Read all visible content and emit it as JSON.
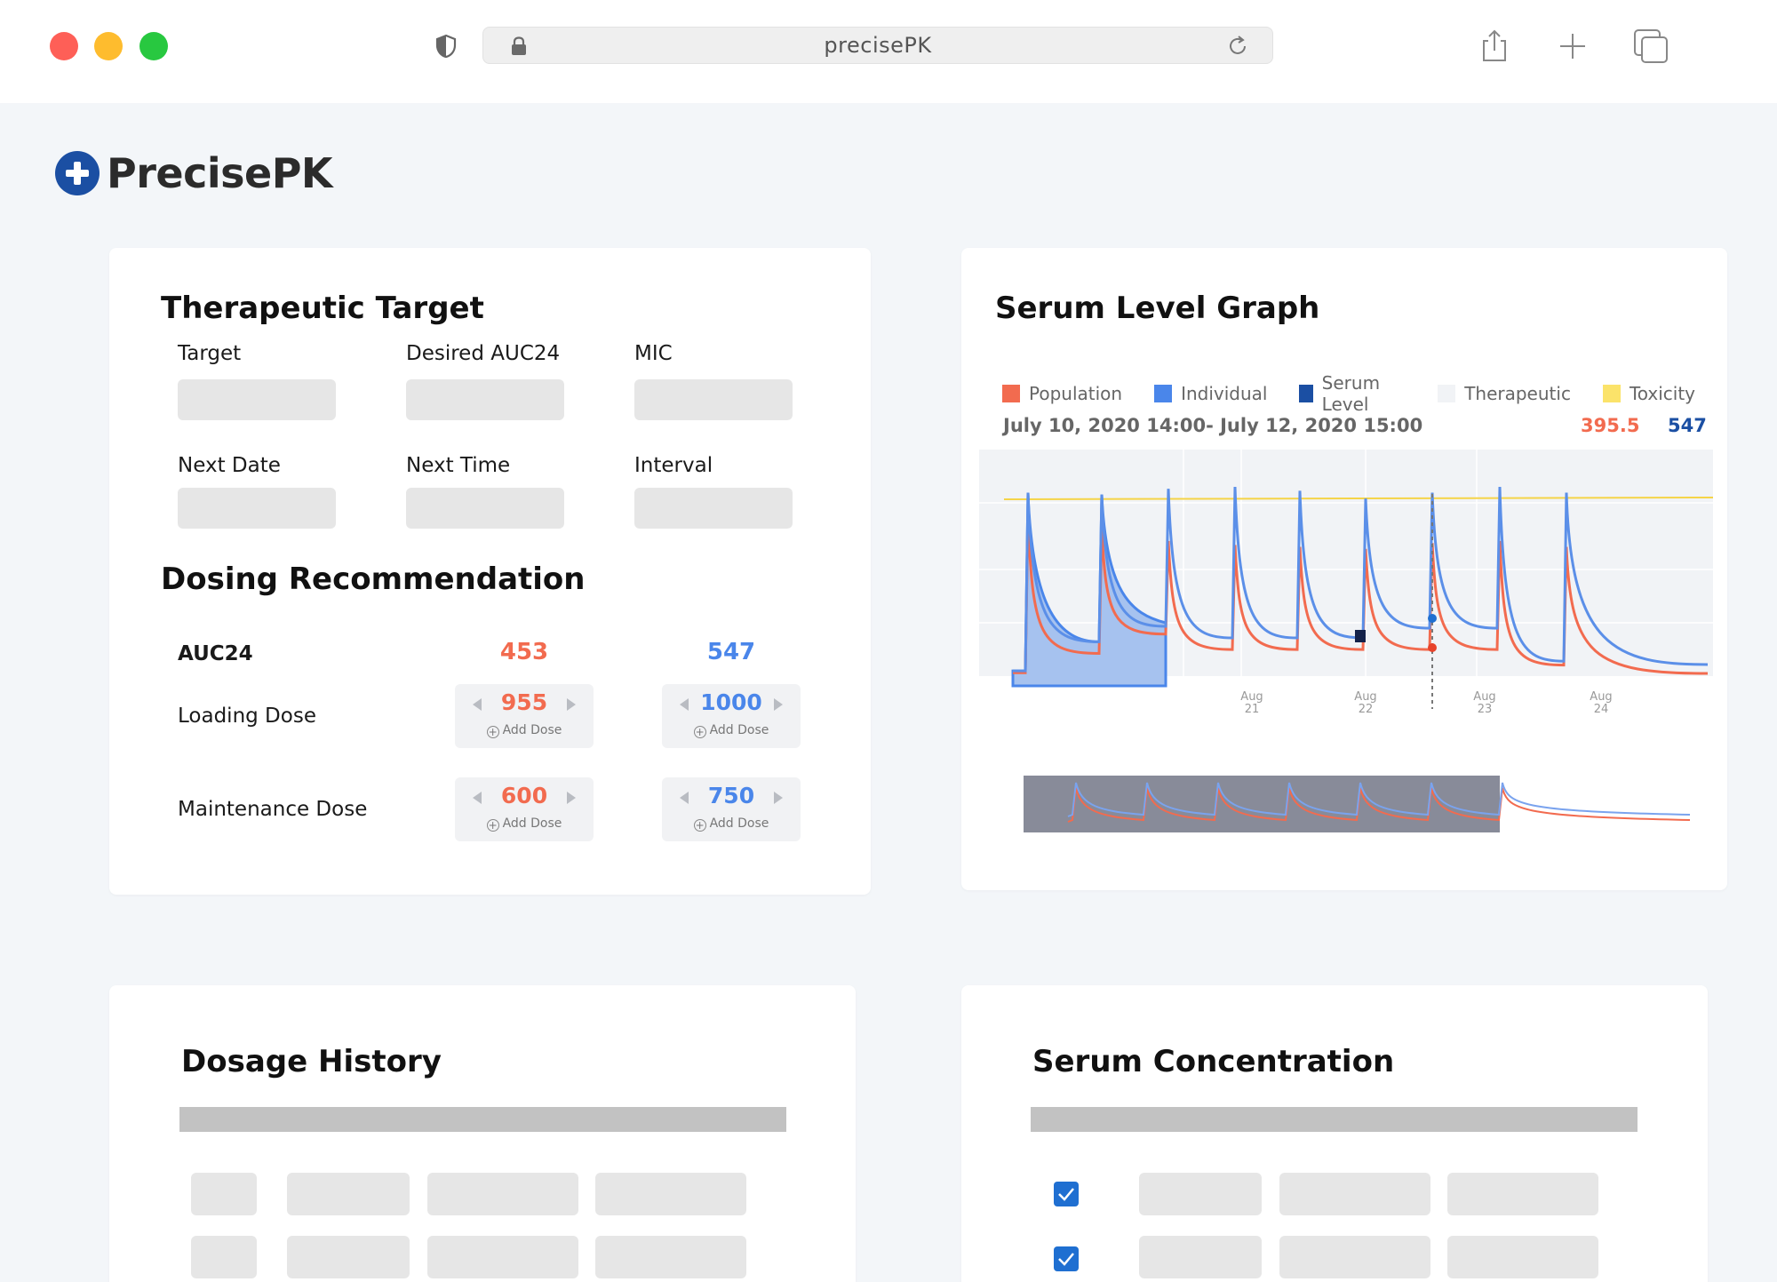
{
  "browser": {
    "url": "precisePK"
  },
  "app": {
    "name": "PrecisePK"
  },
  "therapeutic_target": {
    "title": "Therapeutic Target",
    "fields": [
      {
        "label": "Target",
        "value": ""
      },
      {
        "label": "Desired AUC24",
        "value": ""
      },
      {
        "label": "MIC",
        "value": ""
      },
      {
        "label": "Next Date",
        "value": ""
      },
      {
        "label": "Next Time",
        "value": ""
      },
      {
        "label": "Interval",
        "value": ""
      }
    ]
  },
  "dosing_recommendation": {
    "title": "Dosing Recommendation",
    "auc_label": "AUC24",
    "auc_population": "453",
    "auc_individual": "547",
    "loading_label": "Loading Dose",
    "loading_population": "955",
    "loading_individual": "1000",
    "maintenance_label": "Maintenance Dose",
    "maintenance_population": "600",
    "maintenance_individual": "750",
    "add_dose_label": "Add Dose"
  },
  "serum_graph": {
    "title": "Serum Level Graph",
    "legend": [
      {
        "label": "Population",
        "color": "#f26b4f"
      },
      {
        "label": "Individual",
        "color": "#4a86ea"
      },
      {
        "label": "Serum Level",
        "color": "#1b4fa3"
      },
      {
        "label": "Therapeutic",
        "color": "#f1f3f6"
      },
      {
        "label": "Toxicity",
        "color": "#fbe36a"
      }
    ],
    "date_range": "July 10, 2020 14:00- July 12, 2020 15:00",
    "value_population": "395.5",
    "value_individual": "547",
    "x_ticks": [
      {
        "month": "Aug",
        "day": "21"
      },
      {
        "month": "Aug",
        "day": "22"
      },
      {
        "month": "Aug",
        "day": "23"
      },
      {
        "month": "Aug",
        "day": "24"
      }
    ]
  },
  "chart_data": {
    "type": "line",
    "series": [
      {
        "name": "Population",
        "color": "#f26b4f",
        "peaks_rel": [
          0.85,
          0.78,
          0.72,
          0.7,
          0.69,
          0.68,
          0.71,
          0.72,
          0.69
        ],
        "trough_rel": [
          0.04,
          0.14,
          0.24,
          0.16,
          0.16,
          0.16,
          0.16,
          0.16,
          0.08
        ]
      },
      {
        "name": "Individual",
        "color": "#4a86ea",
        "peaks_rel": [
          0.97,
          0.96,
          0.99,
          1.0,
          0.98,
          0.94,
          0.97,
          1.0,
          0.97
        ],
        "trough_rel": [
          0.05,
          0.2,
          0.28,
          0.22,
          0.22,
          0.22,
          0.27,
          0.27,
          0.1
        ]
      }
    ],
    "x_tick_labels": [
      "Aug 21",
      "Aug 22",
      "Aug 23",
      "Aug 24"
    ],
    "grid": true
  },
  "dosage_history": {
    "title": "Dosage History"
  },
  "serum_concentration": {
    "title": "Serum Concentration"
  }
}
